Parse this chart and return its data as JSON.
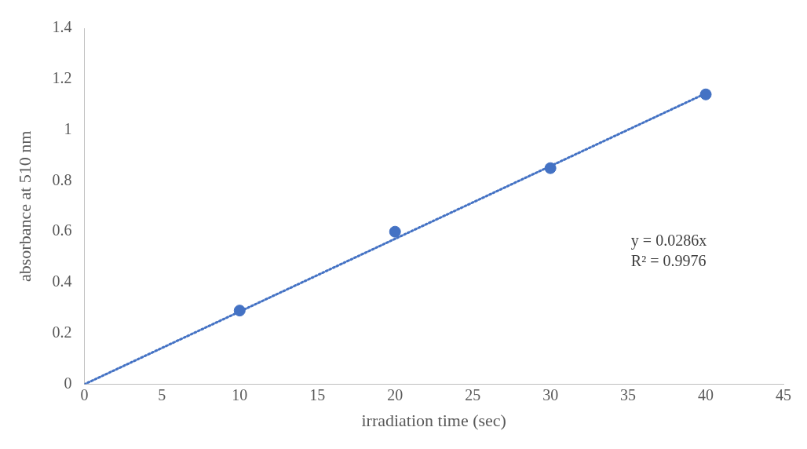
{
  "chart_data": {
    "type": "scatter",
    "xlabel": "irradiation time (sec)",
    "ylabel": "absorbance at 510 nm",
    "x": [
      10,
      20,
      30,
      40
    ],
    "series": [
      {
        "color": "#4472c4",
        "values": [
          0.29,
          0.6,
          0.85,
          1.14
        ],
        "marker": "circle"
      },
      {
        "type": "line",
        "color": "#4472c4",
        "x": [
          0,
          40
        ],
        "values": [
          0,
          1.144
        ],
        "line_style": "dotted",
        "marker": "none"
      }
    ],
    "xlim": [
      0,
      45
    ],
    "xticks": [
      0,
      5,
      10,
      15,
      20,
      25,
      30,
      35,
      40,
      45
    ],
    "ylim": [
      0,
      1.4
    ],
    "yticks": [
      0,
      0.2,
      0.4,
      0.6,
      0.8,
      1,
      1.2,
      1.4
    ],
    "grid": false,
    "legend": false,
    "annotations": [
      "y = 0.0286x",
      "R² = 0.9976"
    ]
  }
}
